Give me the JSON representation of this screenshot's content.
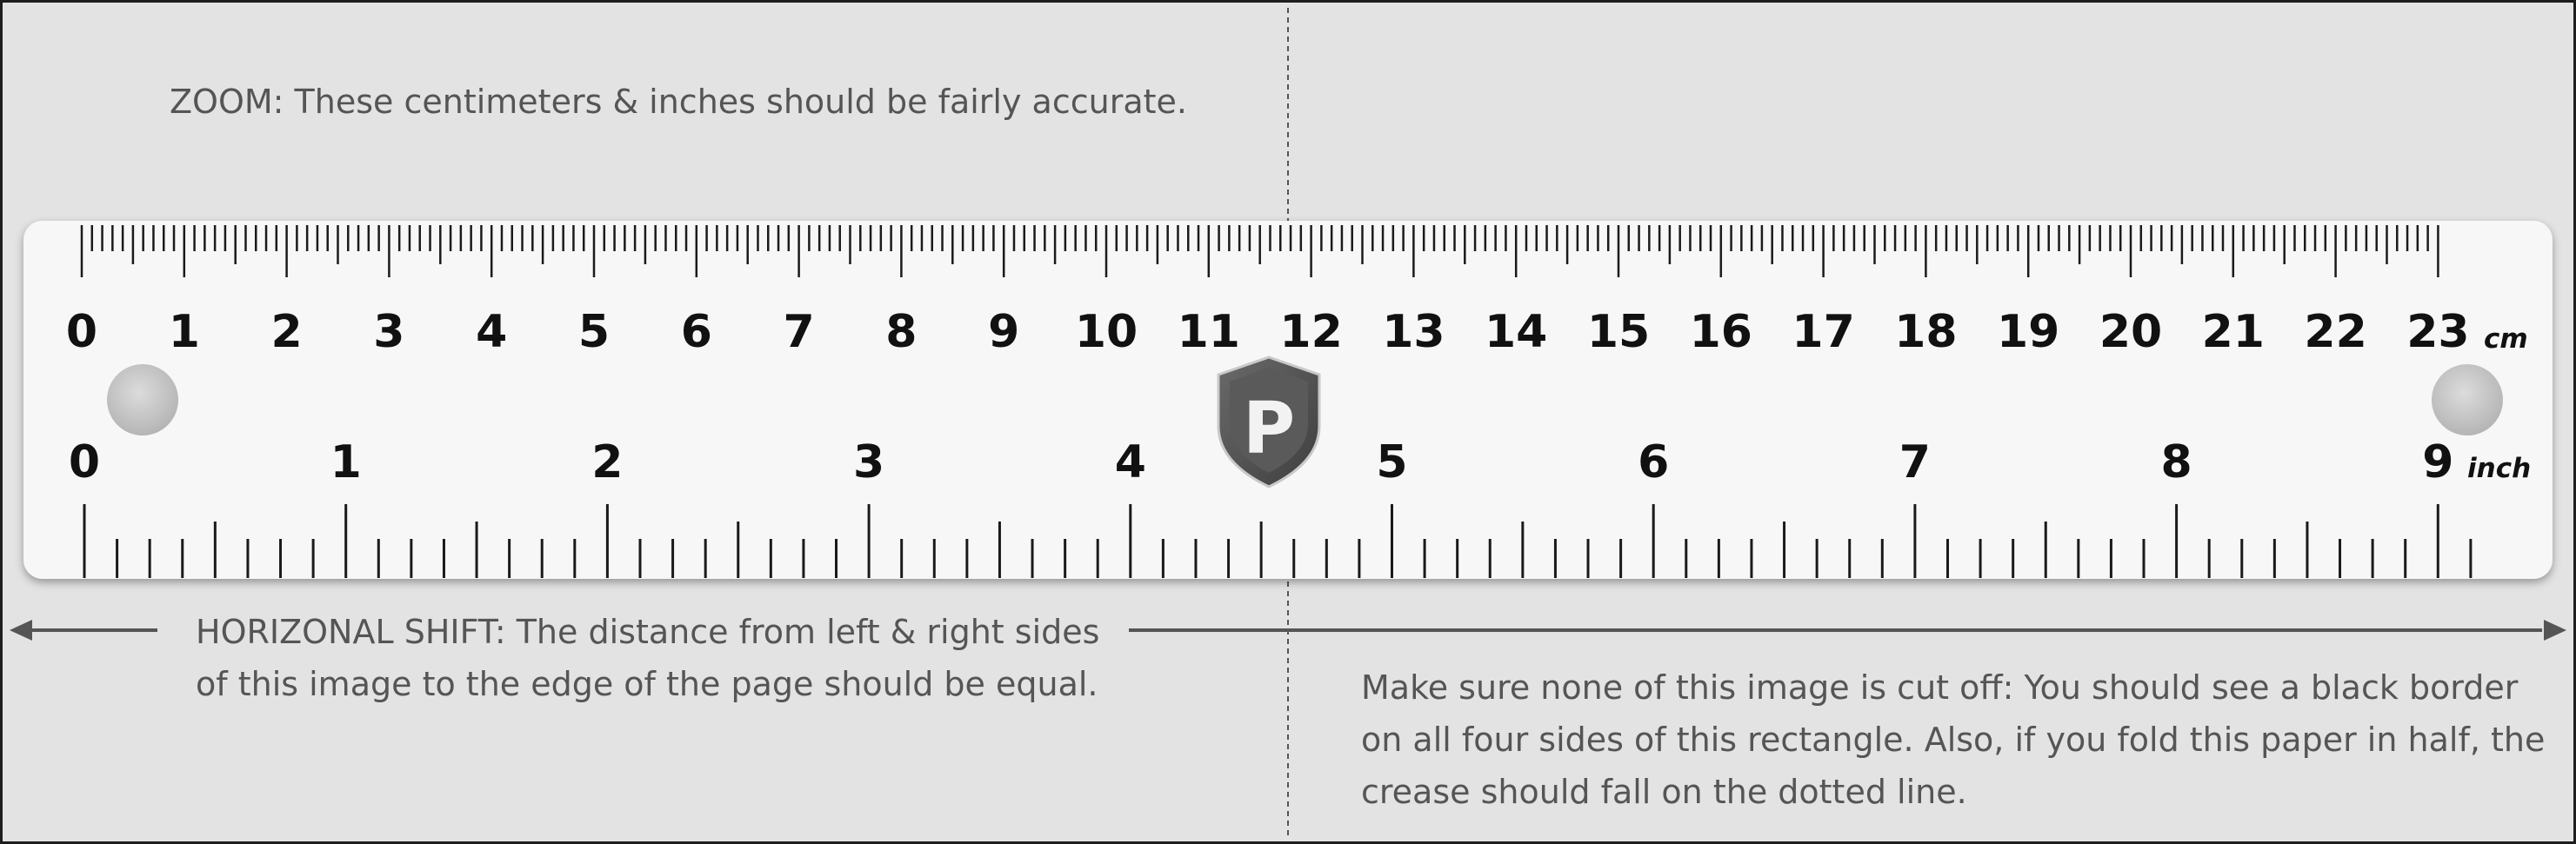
{
  "notes": {
    "zoom_label": "ZOOM:",
    "zoom_text": " These centimeters & inches should be fairly accurate.",
    "shift_label": "HORIZONAL SHIFT:",
    "shift_line1": " The distance from left & right sides",
    "shift_line2": "of this image to the edge of the page should be equal.",
    "fold_line1": "Make sure none of this image is cut off: You should see a black border",
    "fold_line2": "on all four sides of this rectangle. Also, if you fold this paper in half, the",
    "fold_line3": "crease should fall on the dotted line."
  },
  "ruler": {
    "cm_labels": [
      "0",
      "1",
      "2",
      "3",
      "4",
      "5",
      "6",
      "7",
      "8",
      "9",
      "10",
      "11",
      "12",
      "13",
      "14",
      "15",
      "16",
      "17",
      "18",
      "19",
      "20",
      "21",
      "22",
      "23"
    ],
    "cm_unit": "cm",
    "inch_labels": [
      "0",
      "1",
      "2",
      "3",
      "4",
      "5",
      "6",
      "7",
      "8",
      "9"
    ],
    "inch_unit": "inch",
    "logo_letter": "P"
  },
  "colors": {
    "background": "#e3e3e3",
    "ruler_face": "#f7f7f7",
    "tick": "#1a1a1a",
    "note_text": "#555555",
    "arrow": "#555555",
    "logo_shield": "#4f4f4f"
  }
}
